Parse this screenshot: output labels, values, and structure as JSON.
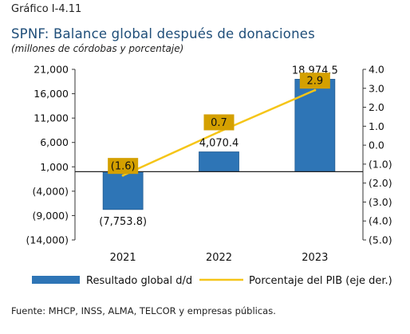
{
  "header": {
    "figure_number": "Gráfico I-4.11",
    "title": "SPNF: Balance global después de donaciones",
    "subtitle": "(millones de córdobas y porcentaje)"
  },
  "footer": {
    "source": "Fuente: MHCP, INSS, ALMA, TELCOR  y empresas públicas."
  },
  "colors": {
    "bar": "#2e75b6",
    "line": "#f5c518",
    "label_box": "#d4a000",
    "title": "#1f4e79"
  },
  "chart_data": {
    "type": "bar",
    "categories": [
      "2021",
      "2022",
      "2023"
    ],
    "series": [
      {
        "name": "Resultado global d/d",
        "type": "bar",
        "axis": "left",
        "values": [
          -7753.8,
          4070.4,
          18974.5
        ],
        "labels": [
          "(7,753.8)",
          "4,070.4",
          "18,974.5"
        ]
      },
      {
        "name": "Porcentaje del PIB (eje der.)",
        "type": "line",
        "axis": "right",
        "values": [
          -1.6,
          0.7,
          2.9
        ],
        "labels": [
          "(1.6)",
          "0.7",
          "2.9"
        ]
      }
    ],
    "y_left": {
      "ylim": [
        -14000,
        21000
      ],
      "ticks": [
        21000,
        16000,
        11000,
        6000,
        1000,
        -4000,
        -9000,
        -14000
      ],
      "tick_labels": [
        "21,000",
        "16,000",
        "11,000",
        "6,000",
        "1,000",
        "(4,000)",
        "(9,000)",
        "(14,000)"
      ]
    },
    "y_right": {
      "ylim": [
        -5.0,
        4.0
      ],
      "ticks": [
        4,
        3,
        2,
        1,
        0,
        -1,
        -2,
        -3,
        -4,
        -5
      ],
      "tick_labels": [
        "4.0",
        "3.0",
        "2.0",
        "1.0",
        "0.0",
        "(1.0)",
        "(2.0)",
        "(3.0)",
        "(4.0)",
        "(5.0)"
      ]
    },
    "grid": false,
    "legend": "bottom"
  }
}
